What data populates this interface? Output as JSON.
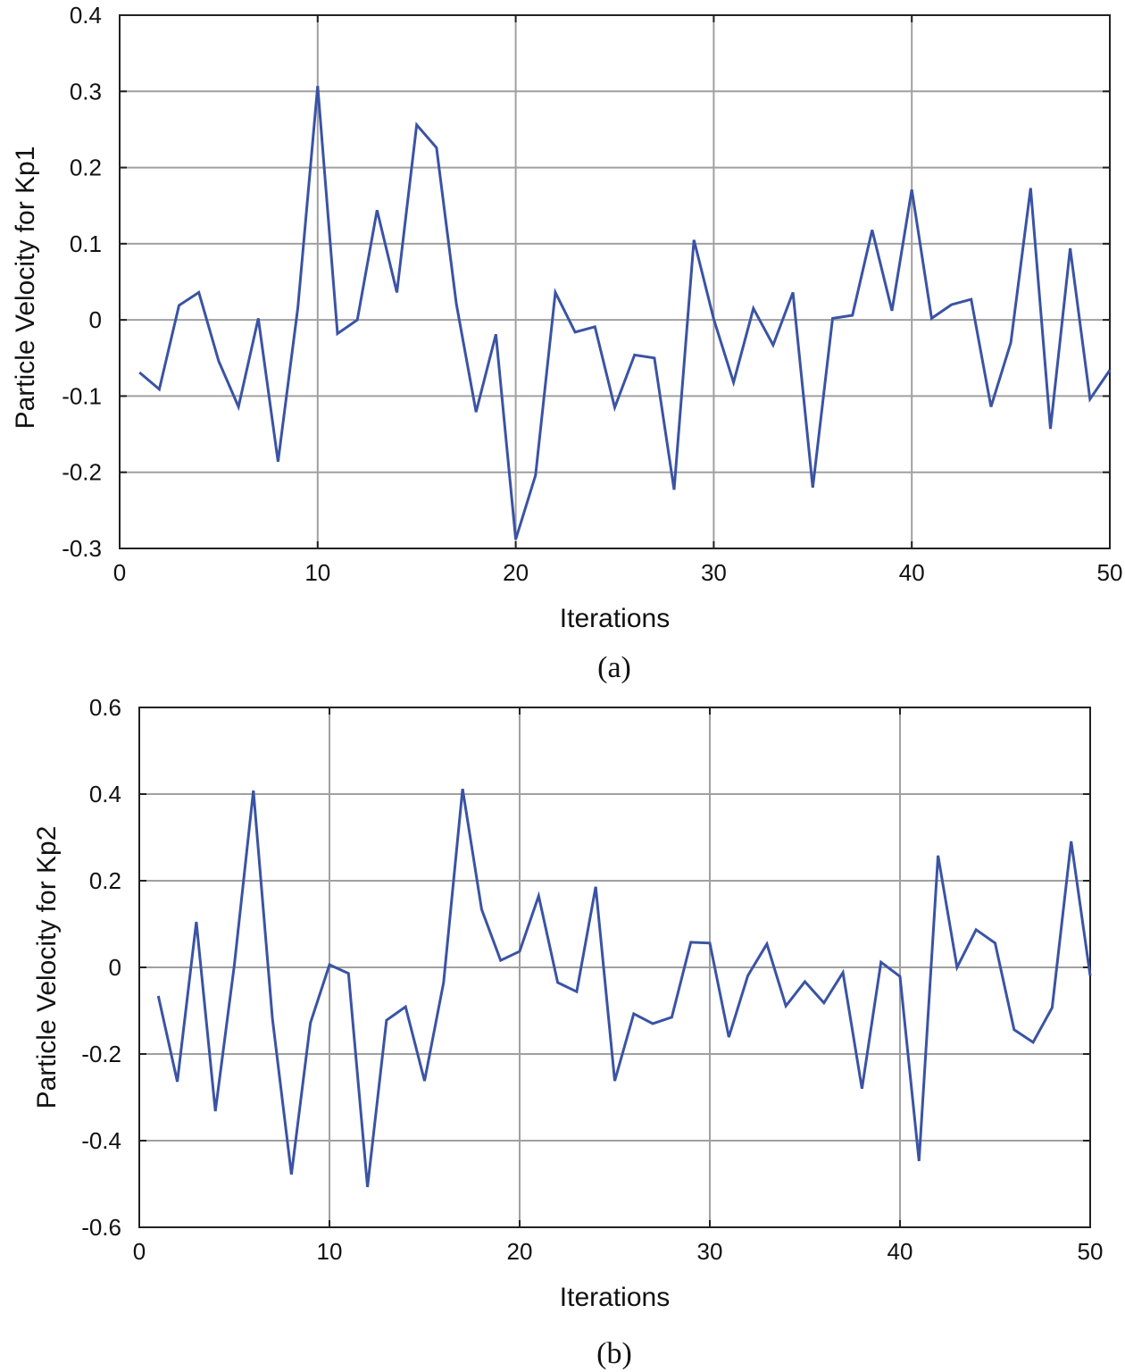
{
  "colors": {
    "line": "#3a53a4",
    "grid": "#a0a0a0",
    "axis": "#222222"
  },
  "chart_data": [
    {
      "type": "line",
      "caption": "(a)",
      "xlabel": "Iterations",
      "ylabel": "Particle Velocity for Kp1",
      "xlim": [
        0,
        50
      ],
      "ylim": [
        -0.3,
        0.4
      ],
      "xticks": [
        0,
        10,
        20,
        30,
        40,
        50
      ],
      "yticks": [
        -0.3,
        -0.2,
        -0.1,
        0,
        0.1,
        0.2,
        0.3,
        0.4
      ],
      "ytick_labels": [
        "-0.3",
        "-0.2",
        "-0.1",
        "0",
        "0.1",
        "0.2",
        "0.3",
        "0.4"
      ],
      "grid": true,
      "x": [
        1,
        2,
        3,
        4,
        5,
        6,
        7,
        8,
        9,
        10,
        11,
        12,
        13,
        14,
        15,
        16,
        17,
        18,
        19,
        20,
        21,
        22,
        23,
        24,
        25,
        26,
        27,
        28,
        29,
        30,
        31,
        32,
        33,
        34,
        35,
        36,
        37,
        38,
        39,
        40,
        41,
        42,
        43,
        44,
        45,
        46,
        47,
        48,
        49,
        50
      ],
      "values": [
        -0.069,
        -0.091,
        0.019,
        0.036,
        -0.054,
        -0.114,
        0.002,
        -0.186,
        0.016,
        0.307,
        -0.018,
        0.0,
        0.144,
        0.036,
        0.256,
        0.226,
        0.021,
        -0.121,
        -0.019,
        -0.288,
        -0.204,
        0.036,
        -0.016,
        -0.009,
        -0.115,
        -0.046,
        -0.05,
        -0.223,
        0.105,
        0.001,
        -0.082,
        0.015,
        -0.033,
        0.036,
        -0.22,
        0.002,
        0.006,
        0.118,
        0.012,
        0.171,
        0.002,
        0.02,
        0.027,
        -0.114,
        -0.03,
        0.173,
        -0.143,
        0.094,
        -0.104,
        -0.066
      ]
    },
    {
      "type": "line",
      "caption": "(b)",
      "xlabel": "Iterations",
      "ylabel": "Particle Velocity for Kp2",
      "xlim": [
        0,
        50
      ],
      "ylim": [
        -0.6,
        0.6
      ],
      "xticks": [
        0,
        10,
        20,
        30,
        40,
        50
      ],
      "yticks": [
        -0.6,
        -0.4,
        -0.2,
        0,
        0.2,
        0.4,
        0.6
      ],
      "ytick_labels": [
        "-0.6",
        "-0.4",
        "-0.2",
        "0",
        "0.2",
        "0.4",
        "0.6"
      ],
      "grid": true,
      "x": [
        1,
        2,
        3,
        4,
        5,
        6,
        7,
        8,
        9,
        10,
        11,
        12,
        13,
        14,
        15,
        16,
        17,
        18,
        19,
        20,
        21,
        22,
        23,
        24,
        25,
        26,
        27,
        28,
        29,
        30,
        31,
        32,
        33,
        34,
        35,
        36,
        37,
        38,
        39,
        40,
        41,
        42,
        43,
        44,
        45,
        46,
        47,
        48,
        49,
        50
      ],
      "values": [
        -0.066,
        -0.264,
        0.105,
        -0.332,
        0.006,
        0.408,
        -0.118,
        -0.478,
        -0.128,
        0.006,
        -0.014,
        -0.507,
        -0.122,
        -0.091,
        -0.262,
        -0.035,
        0.412,
        0.134,
        0.016,
        0.037,
        0.165,
        -0.035,
        -0.056,
        0.186,
        -0.262,
        -0.107,
        -0.13,
        -0.115,
        0.058,
        0.056,
        -0.161,
        -0.019,
        0.054,
        -0.089,
        -0.033,
        -0.082,
        -0.012,
        -0.28,
        0.012,
        -0.021,
        -0.447,
        0.258,
        0.0,
        0.087,
        0.056,
        -0.144,
        -0.173,
        -0.093,
        0.291,
        -0.019
      ]
    }
  ]
}
